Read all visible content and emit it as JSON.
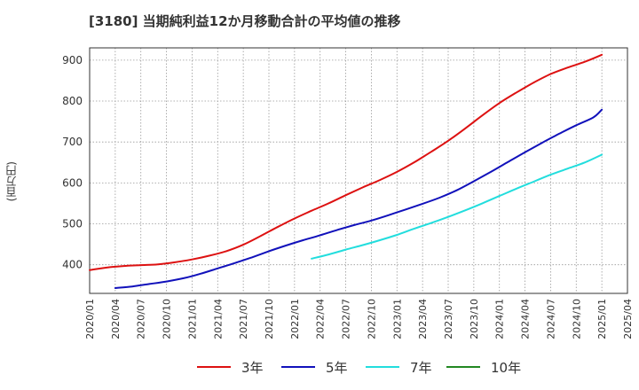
{
  "title": "[3180]  当期純利益12か月移動合計の平均値の推移",
  "chart_data": {
    "type": "line",
    "ylabel": "(百万円)",
    "ylim": [
      330,
      930
    ],
    "yticks": [
      400,
      500,
      600,
      700,
      800,
      900
    ],
    "xlim": [
      "2020-01",
      "2025-04"
    ],
    "xtick_labels": [
      "2020/01",
      "2020/04",
      "2020/07",
      "2020/10",
      "2021/01",
      "2021/04",
      "2021/07",
      "2021/10",
      "2022/01",
      "2022/04",
      "2022/07",
      "2022/10",
      "2023/01",
      "2023/04",
      "2023/07",
      "2023/10",
      "2024/01",
      "2024/04",
      "2024/07",
      "2024/10",
      "2025/01",
      "2025/04"
    ],
    "grid": true,
    "legend_position": "bottom",
    "series": [
      {
        "name": "3年",
        "color": "#dd1111",
        "points": [
          [
            "2020-01",
            387
          ],
          [
            "2020-03",
            393
          ],
          [
            "2020-05",
            397
          ],
          [
            "2020-07",
            399
          ],
          [
            "2020-09",
            401
          ],
          [
            "2020-11",
            406
          ],
          [
            "2021-01",
            413
          ],
          [
            "2021-03",
            422
          ],
          [
            "2021-05",
            433
          ],
          [
            "2021-07",
            449
          ],
          [
            "2021-09",
            470
          ],
          [
            "2021-11",
            492
          ],
          [
            "2022-01",
            513
          ],
          [
            "2022-03",
            532
          ],
          [
            "2022-05",
            550
          ],
          [
            "2022-07",
            570
          ],
          [
            "2022-09",
            589
          ],
          [
            "2022-11",
            607
          ],
          [
            "2023-01",
            627
          ],
          [
            "2023-03",
            650
          ],
          [
            "2023-05",
            676
          ],
          [
            "2023-07",
            703
          ],
          [
            "2023-09",
            733
          ],
          [
            "2023-11",
            765
          ],
          [
            "2024-01",
            795
          ],
          [
            "2024-03",
            821
          ],
          [
            "2024-05",
            845
          ],
          [
            "2024-07",
            866
          ],
          [
            "2024-09",
            882
          ],
          [
            "2024-11",
            896
          ],
          [
            "2025-01",
            913
          ]
        ]
      },
      {
        "name": "5年",
        "color": "#1111bb",
        "points": [
          [
            "2020-04",
            343
          ],
          [
            "2020-06",
            347
          ],
          [
            "2020-08",
            353
          ],
          [
            "2020-10",
            359
          ],
          [
            "2020-12",
            367
          ],
          [
            "2021-02",
            378
          ],
          [
            "2021-04",
            391
          ],
          [
            "2021-06",
            404
          ],
          [
            "2021-08",
            418
          ],
          [
            "2021-10",
            433
          ],
          [
            "2021-12",
            447
          ],
          [
            "2022-02",
            460
          ],
          [
            "2022-04",
            472
          ],
          [
            "2022-06",
            485
          ],
          [
            "2022-08",
            497
          ],
          [
            "2022-10",
            508
          ],
          [
            "2022-12",
            521
          ],
          [
            "2023-02",
            535
          ],
          [
            "2023-04",
            549
          ],
          [
            "2023-06",
            564
          ],
          [
            "2023-08",
            582
          ],
          [
            "2023-10",
            604
          ],
          [
            "2023-12",
            627
          ],
          [
            "2024-02",
            651
          ],
          [
            "2024-04",
            675
          ],
          [
            "2024-06",
            698
          ],
          [
            "2024-08",
            720
          ],
          [
            "2024-10",
            741
          ],
          [
            "2024-12",
            760
          ],
          [
            "2025-01",
            779
          ]
        ]
      },
      {
        "name": "7年",
        "color": "#22dddd",
        "points": [
          [
            "2022-03",
            415
          ],
          [
            "2022-05",
            425
          ],
          [
            "2022-07",
            437
          ],
          [
            "2022-09",
            448
          ],
          [
            "2022-11",
            460
          ],
          [
            "2023-01",
            473
          ],
          [
            "2023-03",
            488
          ],
          [
            "2023-05",
            502
          ],
          [
            "2023-07",
            517
          ],
          [
            "2023-09",
            533
          ],
          [
            "2023-11",
            550
          ],
          [
            "2024-01",
            568
          ],
          [
            "2024-03",
            586
          ],
          [
            "2024-05",
            603
          ],
          [
            "2024-07",
            620
          ],
          [
            "2024-09",
            635
          ],
          [
            "2024-11",
            650
          ],
          [
            "2025-01",
            669
          ]
        ]
      },
      {
        "name": "10年",
        "color": "#228822",
        "points": []
      }
    ]
  }
}
